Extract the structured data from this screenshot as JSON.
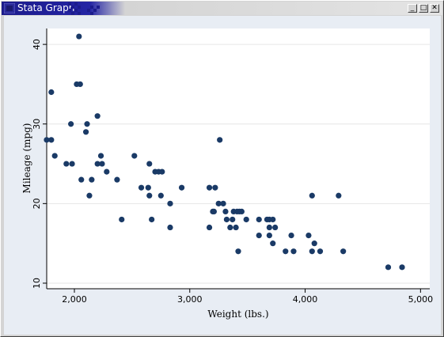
{
  "window": {
    "title": "Stata Graph",
    "controls": {
      "minimize": "_",
      "maximize": "□",
      "close": "✕"
    }
  },
  "colors": {
    "titlebar": "#1c1c8c",
    "graph_region": "#e8edf4",
    "plot_region": "#ffffff",
    "marker": "#1a3a66",
    "grid": "#e6e6e6"
  },
  "chart_data": {
    "type": "scatter",
    "title": "",
    "xlabel": "Weight (lbs.)",
    "ylabel": "Mileage (mpg)",
    "xlim": [
      1760,
      5080
    ],
    "ylim": [
      9.3,
      42
    ],
    "xticks": [
      2000,
      3000,
      4000,
      5000
    ],
    "xtick_labels": [
      "2,000",
      "3,000",
      "4,000",
      "5,000"
    ],
    "yticks": [
      10,
      20,
      30,
      40
    ],
    "ytick_labels": [
      "10",
      "20",
      "30",
      "40"
    ],
    "grid": true,
    "legend": "none",
    "points": [
      [
        2040,
        41
      ],
      [
        1800,
        34
      ],
      [
        2020,
        35
      ],
      [
        2050,
        35
      ],
      [
        1760,
        28
      ],
      [
        1800,
        28
      ],
      [
        1830,
        26
      ],
      [
        1930,
        25
      ],
      [
        1980,
        25
      ],
      [
        2200,
        31
      ],
      [
        1970,
        30
      ],
      [
        2110,
        30
      ],
      [
        2100,
        29
      ],
      [
        2230,
        26
      ],
      [
        2200,
        25
      ],
      [
        2240,
        25
      ],
      [
        2280,
        24
      ],
      [
        2060,
        23
      ],
      [
        2150,
        23
      ],
      [
        2370,
        23
      ],
      [
        2130,
        21
      ],
      [
        2410,
        18
      ],
      [
        2520,
        26
      ],
      [
        2580,
        22
      ],
      [
        2650,
        25
      ],
      [
        2640,
        22
      ],
      [
        2700,
        24
      ],
      [
        2730,
        24
      ],
      [
        2760,
        24
      ],
      [
        2650,
        21
      ],
      [
        2750,
        21
      ],
      [
        2670,
        18
      ],
      [
        2830,
        20
      ],
      [
        2830,
        17
      ],
      [
        2930,
        22
      ],
      [
        3170,
        22
      ],
      [
        3220,
        22
      ],
      [
        3260,
        28
      ],
      [
        3250,
        20
      ],
      [
        3290,
        20
      ],
      [
        3200,
        19
      ],
      [
        3210,
        19
      ],
      [
        3310,
        19
      ],
      [
        3380,
        19
      ],
      [
        3410,
        19
      ],
      [
        3430,
        19
      ],
      [
        3450,
        19
      ],
      [
        3320,
        18
      ],
      [
        3370,
        18
      ],
      [
        3490,
        18
      ],
      [
        3170,
        17
      ],
      [
        3350,
        17
      ],
      [
        3400,
        17
      ],
      [
        3420,
        14
      ],
      [
        3600,
        18
      ],
      [
        3670,
        18
      ],
      [
        3690,
        18
      ],
      [
        3720,
        18
      ],
      [
        3690,
        17
      ],
      [
        3600,
        16
      ],
      [
        3690,
        16
      ],
      [
        3720,
        15
      ],
      [
        3740,
        17
      ],
      [
        3830,
        14
      ],
      [
        3900,
        14
      ],
      [
        3880,
        16
      ],
      [
        4030,
        16
      ],
      [
        4060,
        21
      ],
      [
        4290,
        21
      ],
      [
        4080,
        15
      ],
      [
        4060,
        14
      ],
      [
        4130,
        14
      ],
      [
        4330,
        14
      ],
      [
        4720,
        12
      ],
      [
        4840,
        12
      ]
    ]
  }
}
